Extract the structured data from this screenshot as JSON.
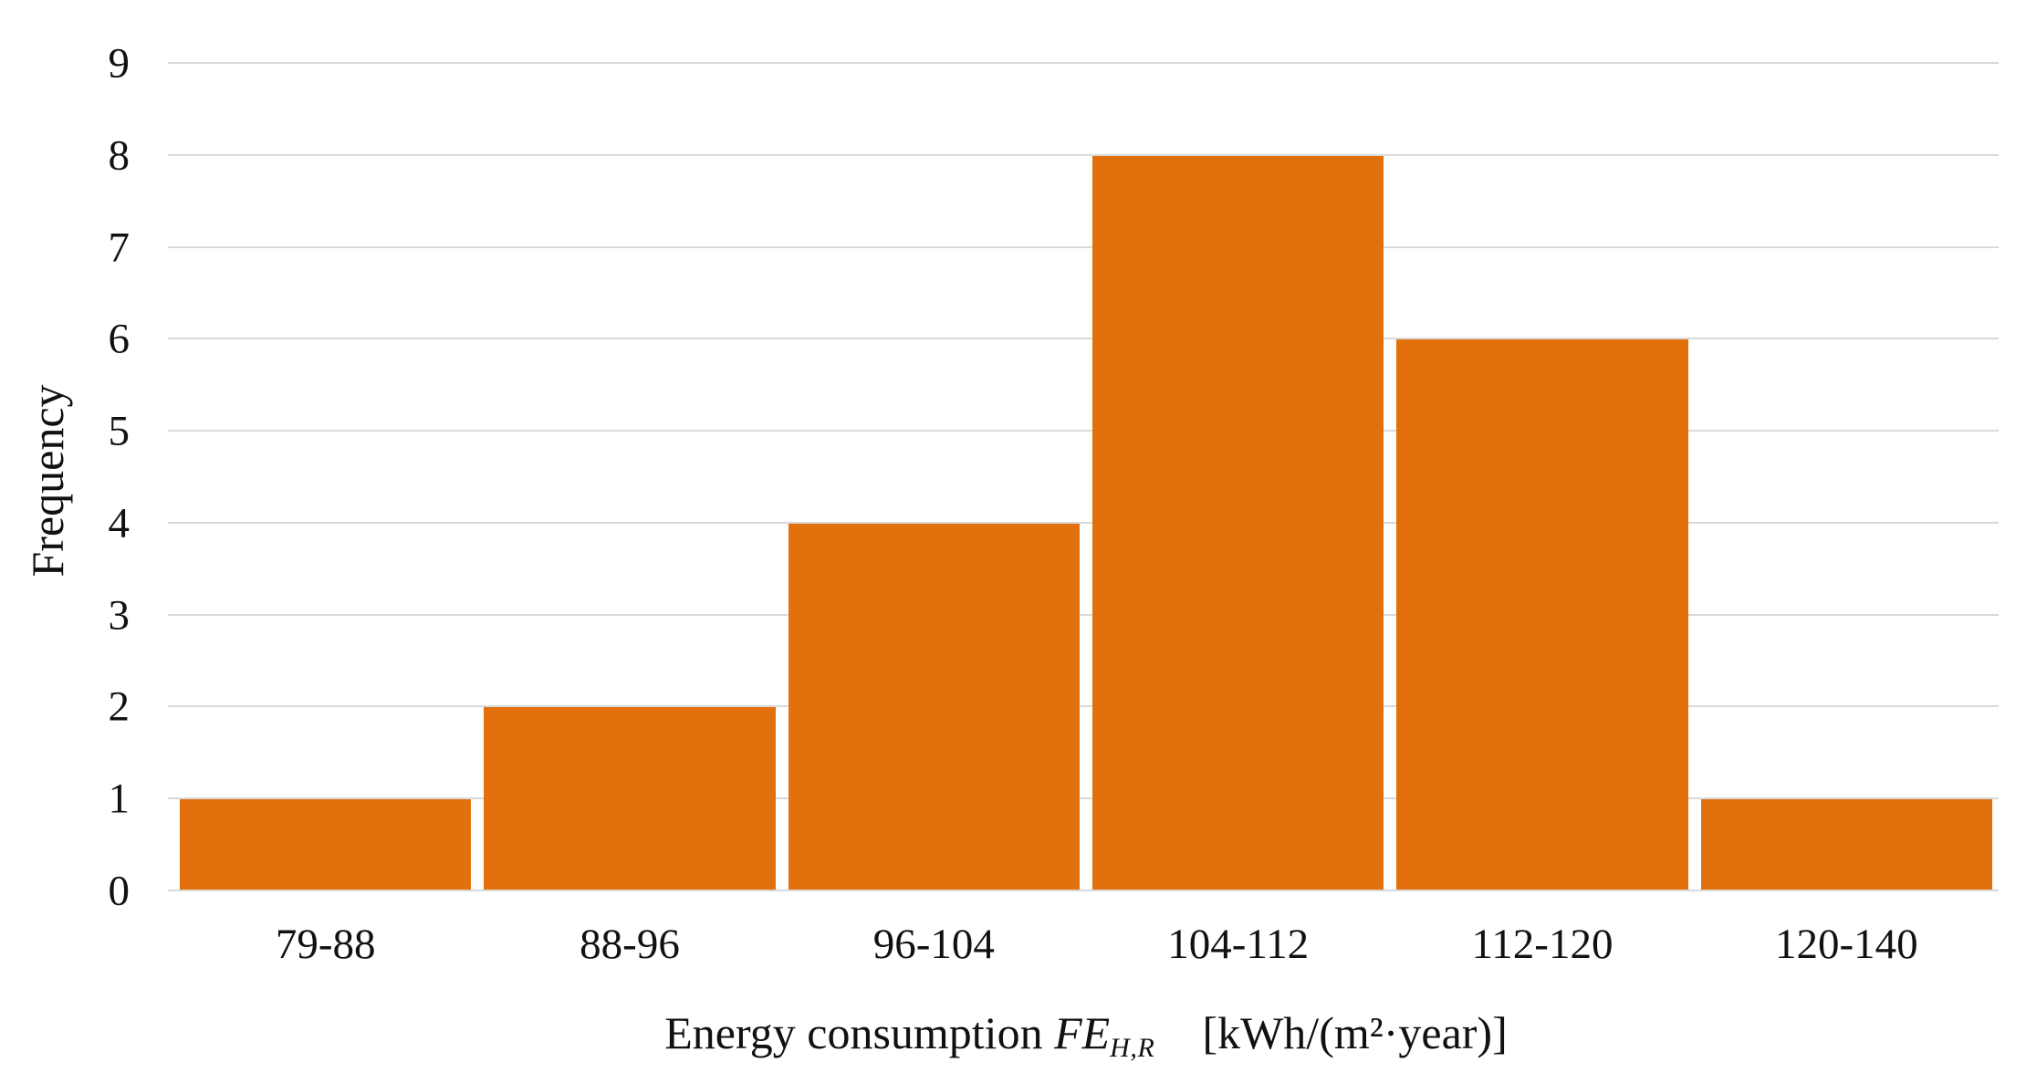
{
  "chart_data": {
    "type": "bar",
    "categories": [
      "79-88",
      "88-96",
      "96-104",
      "104-112",
      "112-120",
      "120-140"
    ],
    "values": [
      1,
      2,
      4,
      8,
      6,
      1
    ],
    "title": "",
    "xlabel": "Energy consumption FE_{H,R} [kWh/(m²·year)]",
    "ylabel": "Frequency",
    "ylim": [
      0,
      9
    ],
    "yticks": [
      0,
      1,
      2,
      3,
      4,
      5,
      6,
      7,
      8,
      9
    ],
    "grid": true,
    "legend_position": "none",
    "bar_color": "#e2700c",
    "gridline_color": "#d9d9d9",
    "xlabel_parts": {
      "text": "Energy consumption",
      "math": "FE",
      "subscript": "H,R",
      "units": "[kWh/(m²·year)]"
    }
  }
}
